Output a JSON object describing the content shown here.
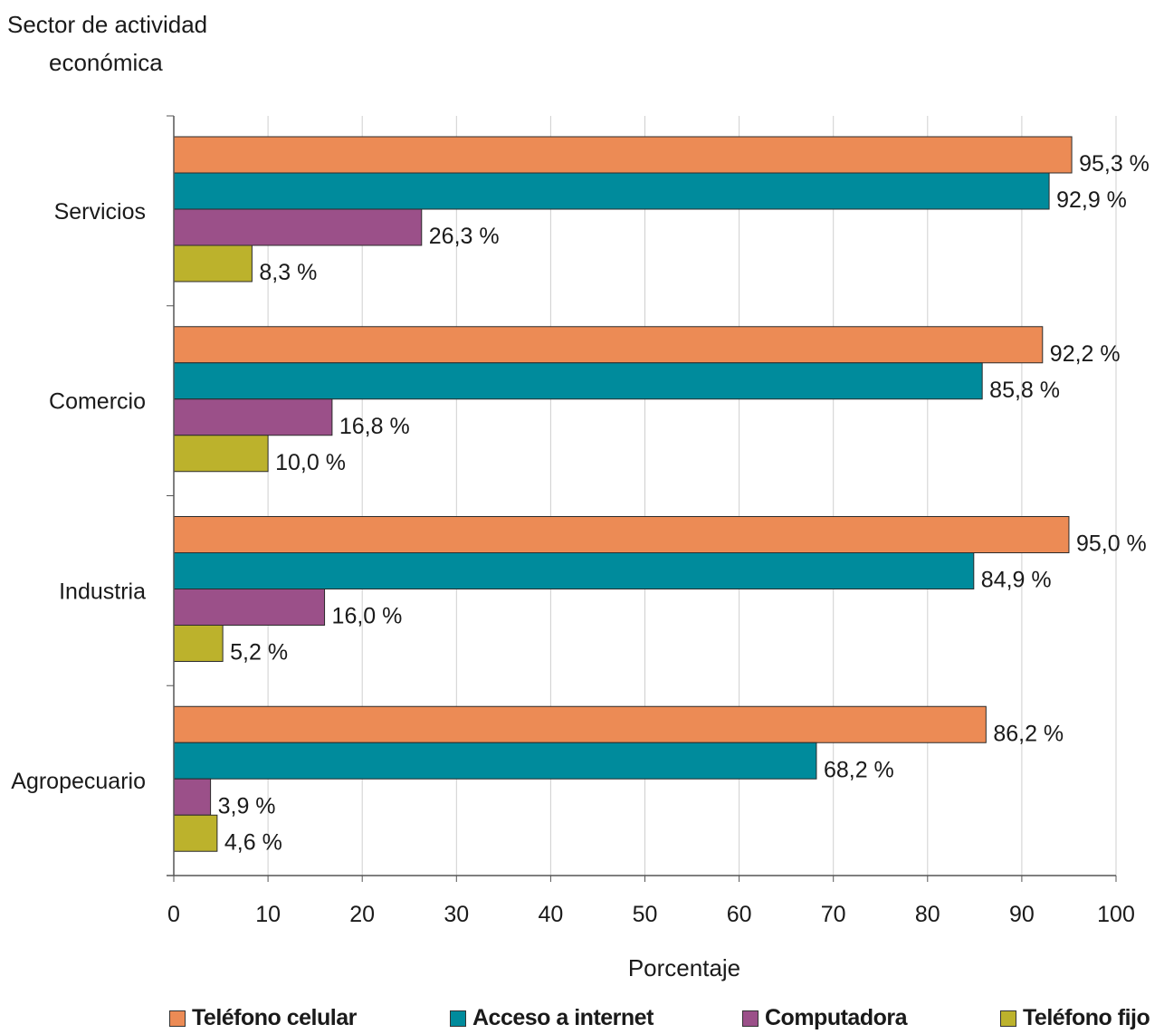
{
  "chart_data": {
    "type": "bar",
    "orientation": "horizontal",
    "ylabel": "Sector de actividad económica",
    "xlabel": "Porcentaje",
    "xlim": [
      0,
      100
    ],
    "xticks": [
      0,
      10,
      20,
      30,
      40,
      50,
      60,
      70,
      80,
      90,
      100
    ],
    "grid": true,
    "legend_position": "bottom",
    "categories": [
      "Servicios",
      "Comercio",
      "Industria",
      "Agropecuario"
    ],
    "series": [
      {
        "name": "Teléfono celular",
        "color": "#ec8b55",
        "values": [
          95.3,
          92.2,
          95.0,
          86.2
        ],
        "labels": [
          "95,3 %",
          "92,2 %",
          "95,0 %",
          "86,2 %"
        ]
      },
      {
        "name": "Acceso a internet",
        "color": "#008b9c",
        "values": [
          92.9,
          85.8,
          84.9,
          68.2
        ],
        "labels": [
          "92,9 %",
          "85,8 %",
          "84,9 %",
          "68,2 %"
        ]
      },
      {
        "name": "Computadora",
        "color": "#9b5089",
        "values": [
          26.3,
          16.8,
          16.0,
          3.9
        ],
        "labels": [
          "26,3 %",
          "16,8 %",
          "16,0 %",
          "3,9 %"
        ]
      },
      {
        "name": "Teléfono fijo",
        "color": "#bcb22c",
        "values": [
          8.3,
          10.0,
          5.2,
          4.6
        ],
        "labels": [
          "8,3 %",
          "10,0 %",
          "5,2 %",
          "4,6 %"
        ]
      }
    ]
  }
}
